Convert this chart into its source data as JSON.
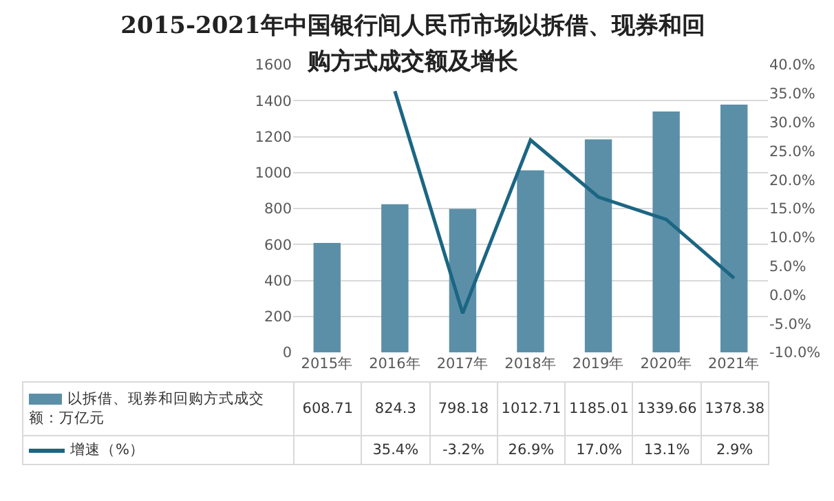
{
  "chart_data": {
    "type": "bar",
    "title": "2015-2021年中国银行间人民币市场以拆借、现券和回购方式成交额及增长",
    "categories": [
      "2015年",
      "2016年",
      "2017年",
      "2018年",
      "2019年",
      "2020年",
      "2021年"
    ],
    "series": [
      {
        "name": "以拆借、现券和回购方式成交额：万亿元",
        "color": "#5b8fa8",
        "values": [
          608.71,
          824.3,
          798.18,
          1012.71,
          1185.01,
          1339.66,
          1378.38
        ],
        "value_labels": [
          "608.71",
          "824.3",
          "798.18",
          "1012.71",
          "1185.01",
          "1339.66",
          "1378.38"
        ]
      },
      {
        "name": "增速（%）",
        "type": "line",
        "axis": "y2",
        "color": "#1b6683",
        "values": [
          null,
          35.4,
          -3.2,
          26.9,
          17.0,
          13.1,
          2.9
        ],
        "value_labels": [
          null,
          "35.4%",
          "-3.2%",
          "26.9%",
          "17.0%",
          "13.1%",
          "2.9%"
        ]
      }
    ],
    "ylim": [
      0,
      1600
    ],
    "yticks": [
      0,
      200,
      400,
      600,
      800,
      1000,
      1200,
      1400,
      1600
    ],
    "y2lim": [
      -10,
      40
    ],
    "y2ticks": [
      {
        "value": -10,
        "label": "-10.0%"
      },
      {
        "value": -5,
        "label": "-5.0%"
      },
      {
        "value": 0,
        "label": "0.0%"
      },
      {
        "value": 5,
        "label": "5.0%"
      },
      {
        "value": 10,
        "label": "10.0%"
      },
      {
        "value": 15,
        "label": "15.0%"
      },
      {
        "value": 20,
        "label": "20.0%"
      },
      {
        "value": 25,
        "label": "25.0%"
      },
      {
        "value": 30,
        "label": "30.0%"
      },
      {
        "value": 35,
        "label": "35.0%"
      },
      {
        "value": 40,
        "label": "40.0%"
      }
    ],
    "grid": "y",
    "legend": "bottom",
    "marker": "none",
    "line_style": "solid"
  }
}
